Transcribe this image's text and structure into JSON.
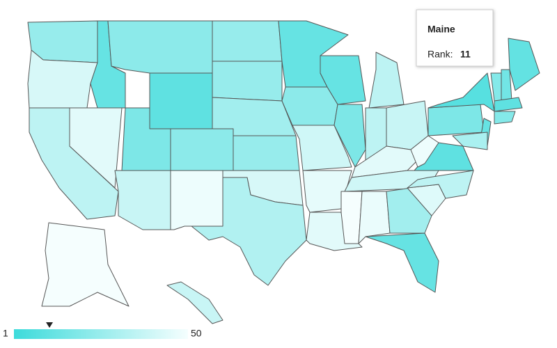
{
  "map": {
    "type": "choropleth",
    "color_min": "#3ddbdb",
    "color_max": "#f5fefe",
    "min": 1,
    "max": 50,
    "values": [
      25,
      42,
      35,
      45,
      12,
      22,
      10,
      18,
      38,
      22,
      48,
      25,
      25,
      28,
      25,
      42,
      32,
      12,
      22,
      40,
      46,
      45,
      12,
      18,
      35,
      35,
      38,
      45,
      40,
      50,
      47,
      28,
      12,
      44,
      35,
      10,
      48,
      18,
      8,
      12,
      20,
      15,
      11,
      10,
      20,
      30,
      50,
      38
    ]
  },
  "tooltip": {
    "title": "Maine",
    "label": "Rank:",
    "value": 11
  }
}
